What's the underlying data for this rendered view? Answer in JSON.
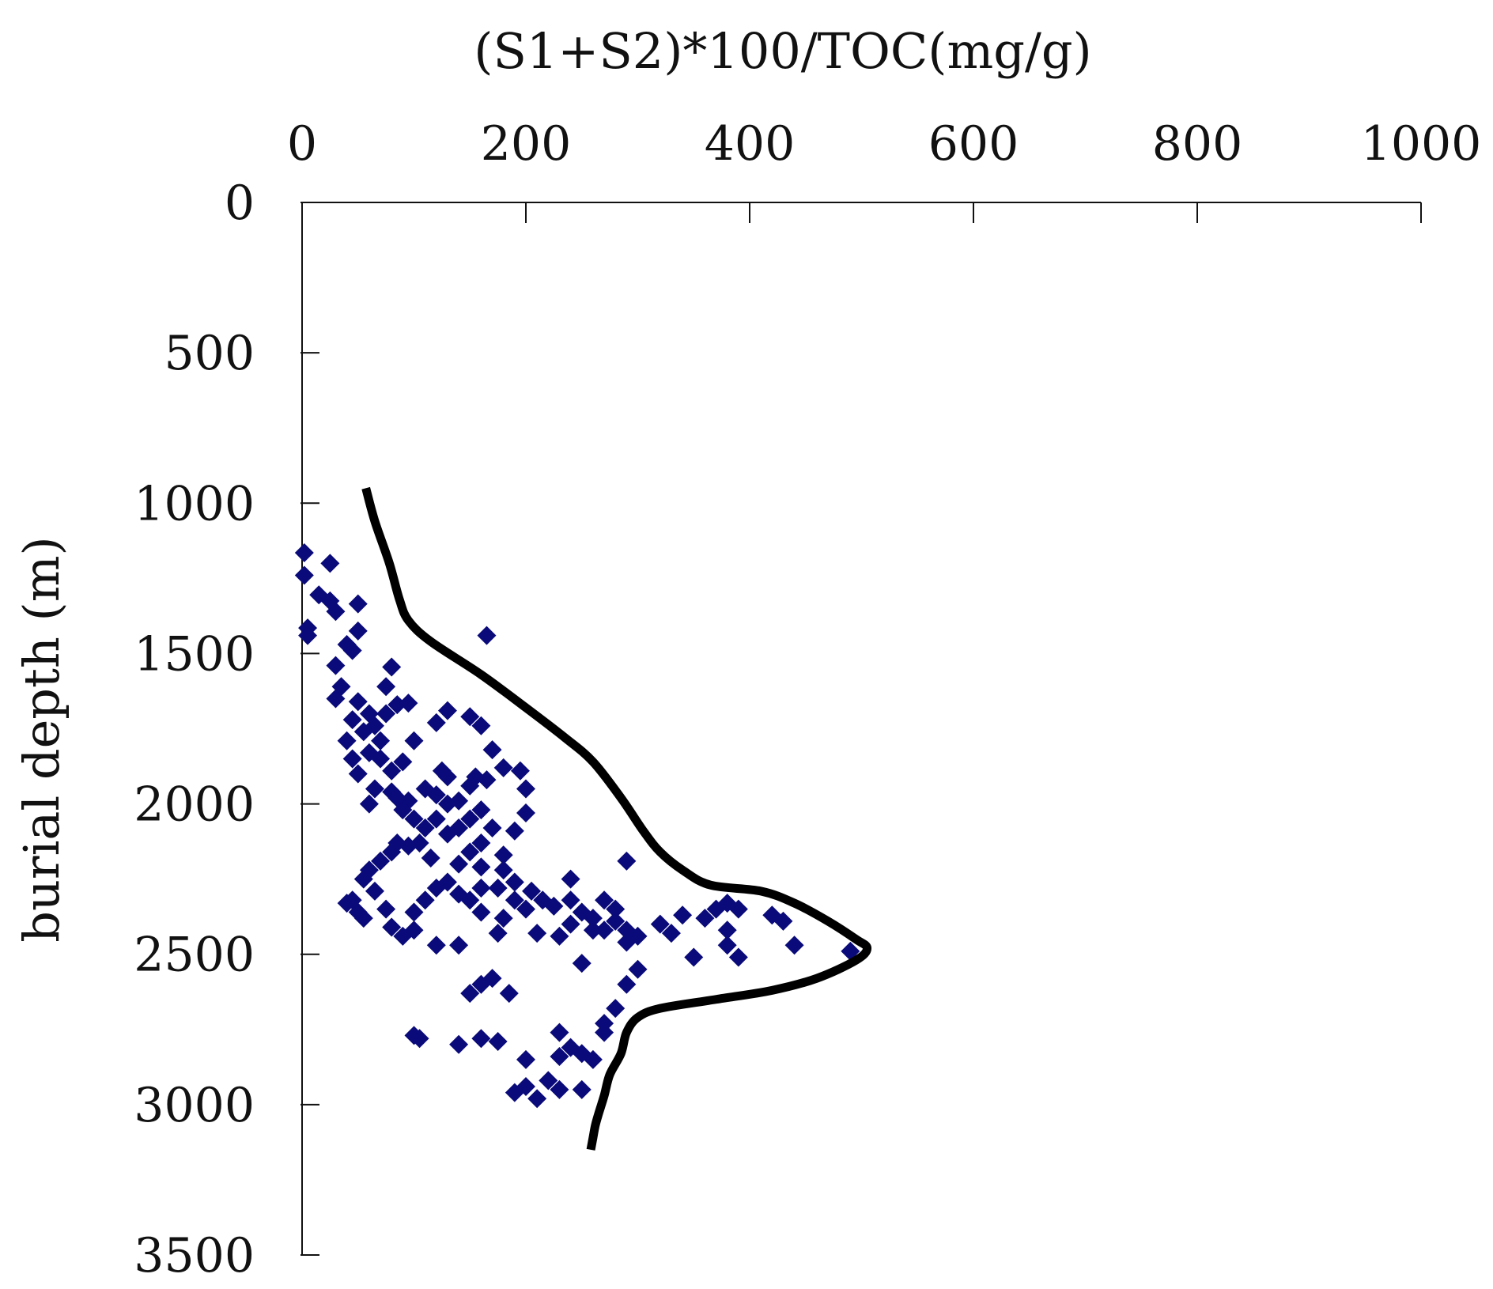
{
  "chart_data": {
    "type": "scatter",
    "title": "",
    "xlabel": "(S1+S2)*100/TOC(mg/g)",
    "ylabel": "burial depth (m)",
    "xlim": [
      0,
      1000
    ],
    "ylim": [
      0,
      3500
    ],
    "x_axis_position": "top",
    "y_axis_inverted": true,
    "grid": false,
    "legend": "none",
    "x_ticks": [
      "0",
      "200",
      "400",
      "600",
      "800",
      "1000"
    ],
    "y_ticks": [
      "0",
      "500",
      "1000",
      "1500",
      "2000",
      "2500",
      "3000",
      "3500"
    ],
    "x_tick_values": [
      0,
      200,
      400,
      600,
      800,
      1000
    ],
    "y_tick_values": [
      0,
      500,
      1000,
      1500,
      2000,
      2500,
      3000,
      3500
    ],
    "colors": {
      "points": "#0a0a7a",
      "envelope": "#000000",
      "axis": "#111111"
    },
    "series": [
      {
        "kind": "points",
        "marker": "diamond",
        "points": [
          [
            2,
            1165
          ],
          [
            2,
            1240
          ],
          [
            5,
            1415
          ],
          [
            5,
            1440
          ],
          [
            15,
            1305
          ],
          [
            25,
            1200
          ],
          [
            25,
            1325
          ],
          [
            30,
            1360
          ],
          [
            50,
            1335
          ],
          [
            45,
            1490
          ],
          [
            30,
            1540
          ],
          [
            40,
            1470
          ],
          [
            50,
            1425
          ],
          [
            35,
            1610
          ],
          [
            30,
            1650
          ],
          [
            50,
            1660
          ],
          [
            60,
            1700
          ],
          [
            45,
            1720
          ],
          [
            55,
            1760
          ],
          [
            65,
            1740
          ],
          [
            75,
            1700
          ],
          [
            85,
            1670
          ],
          [
            75,
            1610
          ],
          [
            80,
            1545
          ],
          [
            95,
            1665
          ],
          [
            70,
            1790
          ],
          [
            40,
            1790
          ],
          [
            45,
            1850
          ],
          [
            50,
            1900
          ],
          [
            60,
            1830
          ],
          [
            70,
            1850
          ],
          [
            80,
            1890
          ],
          [
            90,
            1860
          ],
          [
            100,
            1790
          ],
          [
            65,
            1950
          ],
          [
            80,
            1960
          ],
          [
            95,
            1990
          ],
          [
            60,
            2000
          ],
          [
            100,
            2050
          ],
          [
            110,
            2080
          ],
          [
            90,
            2020
          ],
          [
            85,
            1980
          ],
          [
            110,
            1950
          ],
          [
            120,
            1970
          ],
          [
            130,
            2000
          ],
          [
            105,
            2130
          ],
          [
            115,
            2180
          ],
          [
            120,
            2050
          ],
          [
            130,
            2100
          ],
          [
            140,
            2080
          ],
          [
            95,
            2140
          ],
          [
            85,
            2130
          ],
          [
            70,
            2190
          ],
          [
            80,
            2160
          ],
          [
            60,
            2220
          ],
          [
            55,
            2250
          ],
          [
            65,
            2290
          ],
          [
            45,
            2320
          ],
          [
            40,
            2330
          ],
          [
            50,
            2360
          ],
          [
            55,
            2380
          ],
          [
            75,
            2350
          ],
          [
            80,
            2410
          ],
          [
            90,
            2440
          ],
          [
            100,
            2360
          ],
          [
            110,
            2320
          ],
          [
            100,
            2420
          ],
          [
            120,
            2280
          ],
          [
            130,
            2260
          ],
          [
            140,
            2200
          ],
          [
            150,
            2160
          ],
          [
            160,
            2210
          ],
          [
            160,
            2130
          ],
          [
            170,
            2080
          ],
          [
            180,
            2170
          ],
          [
            190,
            2090
          ],
          [
            200,
            2030
          ],
          [
            160,
            2020
          ],
          [
            150,
            2050
          ],
          [
            140,
            1990
          ],
          [
            150,
            1940
          ],
          [
            155,
            1910
          ],
          [
            165,
            1920
          ],
          [
            130,
            1910
          ],
          [
            125,
            1890
          ],
          [
            150,
            1710
          ],
          [
            130,
            1690
          ],
          [
            120,
            1730
          ],
          [
            160,
            1740
          ],
          [
            170,
            1820
          ],
          [
            180,
            1880
          ],
          [
            195,
            1890
          ],
          [
            200,
            1950
          ],
          [
            180,
            2220
          ],
          [
            175,
            2280
          ],
          [
            190,
            2320
          ],
          [
            205,
            2290
          ],
          [
            215,
            2320
          ],
          [
            225,
            2340
          ],
          [
            240,
            2320
          ],
          [
            250,
            2360
          ],
          [
            260,
            2380
          ],
          [
            270,
            2420
          ],
          [
            240,
            2400
          ],
          [
            230,
            2440
          ],
          [
            240,
            2250
          ],
          [
            270,
            2320
          ],
          [
            280,
            2390
          ],
          [
            290,
            2420
          ],
          [
            300,
            2440
          ],
          [
            280,
            2350
          ],
          [
            190,
            2260
          ],
          [
            200,
            2350
          ],
          [
            210,
            2430
          ],
          [
            180,
            2380
          ],
          [
            160,
            2360
          ],
          [
            150,
            2320
          ],
          [
            140,
            2300
          ],
          [
            160,
            2280
          ],
          [
            175,
            2430
          ],
          [
            140,
            2470
          ],
          [
            120,
            2470
          ],
          [
            150,
            2630
          ],
          [
            160,
            2600
          ],
          [
            170,
            2580
          ],
          [
            185,
            2630
          ],
          [
            175,
            2790
          ],
          [
            160,
            2780
          ],
          [
            140,
            2800
          ],
          [
            105,
            2780
          ],
          [
            100,
            2770
          ],
          [
            200,
            2850
          ],
          [
            230,
            2840
          ],
          [
            240,
            2810
          ],
          [
            250,
            2830
          ],
          [
            260,
            2850
          ],
          [
            230,
            2760
          ],
          [
            270,
            2730
          ],
          [
            270,
            2760
          ],
          [
            280,
            2680
          ],
          [
            290,
            2600
          ],
          [
            300,
            2550
          ],
          [
            290,
            2460
          ],
          [
            250,
            2530
          ],
          [
            260,
            2420
          ],
          [
            320,
            2400
          ],
          [
            330,
            2430
          ],
          [
            340,
            2370
          ],
          [
            350,
            2510
          ],
          [
            360,
            2380
          ],
          [
            370,
            2350
          ],
          [
            380,
            2330
          ],
          [
            390,
            2350
          ],
          [
            380,
            2420
          ],
          [
            380,
            2470
          ],
          [
            390,
            2510
          ],
          [
            420,
            2370
          ],
          [
            430,
            2390
          ],
          [
            440,
            2470
          ],
          [
            490,
            2490
          ],
          [
            290,
            2190
          ],
          [
            190,
            2960
          ],
          [
            200,
            2940
          ],
          [
            210,
            2980
          ],
          [
            220,
            2920
          ],
          [
            230,
            2950
          ],
          [
            250,
            2950
          ],
          [
            165,
            1440
          ]
        ]
      },
      {
        "kind": "line",
        "curve": "smooth",
        "points": [
          [
            57,
            950
          ],
          [
            65,
            1060
          ],
          [
            78,
            1200
          ],
          [
            87,
            1320
          ],
          [
            95,
            1390
          ],
          [
            115,
            1460
          ],
          [
            160,
            1570
          ],
          [
            200,
            1680
          ],
          [
            235,
            1780
          ],
          [
            260,
            1860
          ],
          [
            285,
            1980
          ],
          [
            305,
            2090
          ],
          [
            320,
            2160
          ],
          [
            340,
            2220
          ],
          [
            365,
            2270
          ],
          [
            410,
            2290
          ],
          [
            440,
            2330
          ],
          [
            470,
            2390
          ],
          [
            495,
            2450
          ],
          [
            505,
            2480
          ],
          [
            495,
            2520
          ],
          [
            460,
            2580
          ],
          [
            420,
            2620
          ],
          [
            370,
            2650
          ],
          [
            320,
            2680
          ],
          [
            300,
            2710
          ],
          [
            290,
            2760
          ],
          [
            285,
            2830
          ],
          [
            275,
            2900
          ],
          [
            270,
            2970
          ],
          [
            265,
            3030
          ],
          [
            262,
            3070
          ],
          [
            260,
            3110
          ],
          [
            258,
            3150
          ]
        ]
      }
    ]
  }
}
